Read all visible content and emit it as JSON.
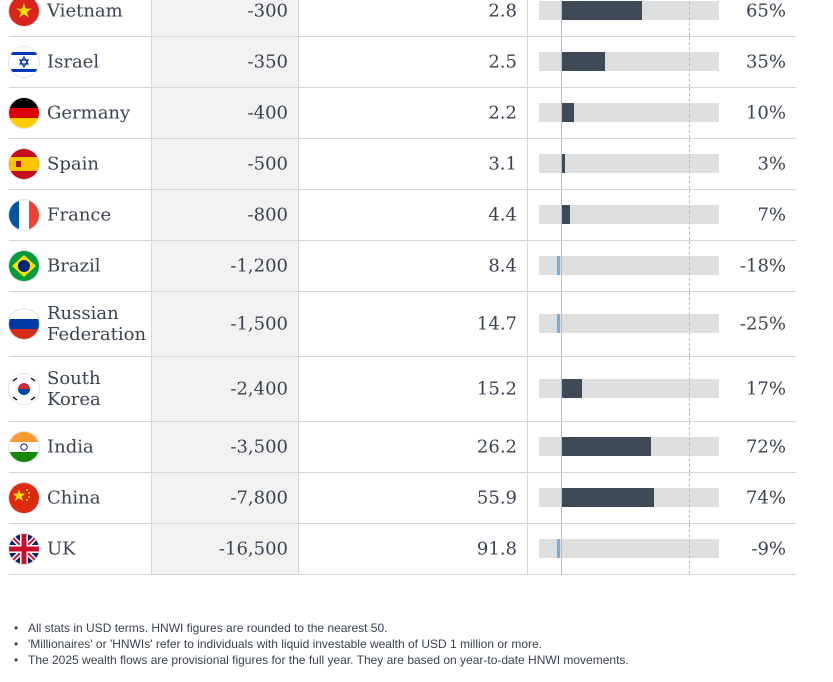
{
  "table": {
    "rows": [
      {
        "country": "Vietnam",
        "flow": "-300",
        "hnwi": "2.8",
        "pct": "65%",
        "change": 65,
        "flag": "vietnam-flag-icon"
      },
      {
        "country": "Israel",
        "flow": "-350",
        "hnwi": "2.5",
        "pct": "35%",
        "change": 35,
        "flag": "israel-flag-icon"
      },
      {
        "country": "Germany",
        "flow": "-400",
        "hnwi": "2.2",
        "pct": "10%",
        "change": 10,
        "flag": "germany-flag-icon"
      },
      {
        "country": "Spain",
        "flow": "-500",
        "hnwi": "3.1",
        "pct": "3%",
        "change": 3,
        "flag": "spain-flag-icon"
      },
      {
        "country": "France",
        "flow": "-800",
        "hnwi": "4.4",
        "pct": "7%",
        "change": 7,
        "flag": "france-flag-icon"
      },
      {
        "country": "Brazil",
        "flow": "-1,200",
        "hnwi": "8.4",
        "pct": "-18%",
        "change": -18,
        "flag": "brazil-flag-icon"
      },
      {
        "country": "Russian Federation",
        "flow": "-1,500",
        "hnwi": "14.7",
        "pct": "-25%",
        "change": -25,
        "flag": "russia-flag-icon"
      },
      {
        "country": "South Korea",
        "flow": "-2,400",
        "hnwi": "15.2",
        "pct": "17%",
        "change": 17,
        "flag": "south-korea-flag-icon"
      },
      {
        "country": "India",
        "flow": "-3,500",
        "hnwi": "26.2",
        "pct": "72%",
        "change": 72,
        "flag": "india-flag-icon"
      },
      {
        "country": "China",
        "flow": "-7,800",
        "hnwi": "55.9",
        "pct": "74%",
        "change": 74,
        "flag": "china-flag-icon"
      },
      {
        "country": "UK",
        "flow": "-16,500",
        "hnwi": "91.8",
        "pct": "-9%",
        "change": -9,
        "flag": "uk-flag-icon"
      }
    ]
  },
  "notes": [
    "All stats in USD terms. HNWI figures are rounded to the nearest 50.",
    "'Millionaires' or 'HNWIs' refer to individuals with liquid investable wealth of USD 1 million or more.",
    "The 2025 wealth flows are provisional figures for the full year. They are based on year-to-date HNWI movements."
  ],
  "colors": {
    "positive_bar": "#3f4a59",
    "negative_bar": "#7aaed6",
    "track": "#dedfe1",
    "flow_column_bg": "#f2f2f2"
  }
}
